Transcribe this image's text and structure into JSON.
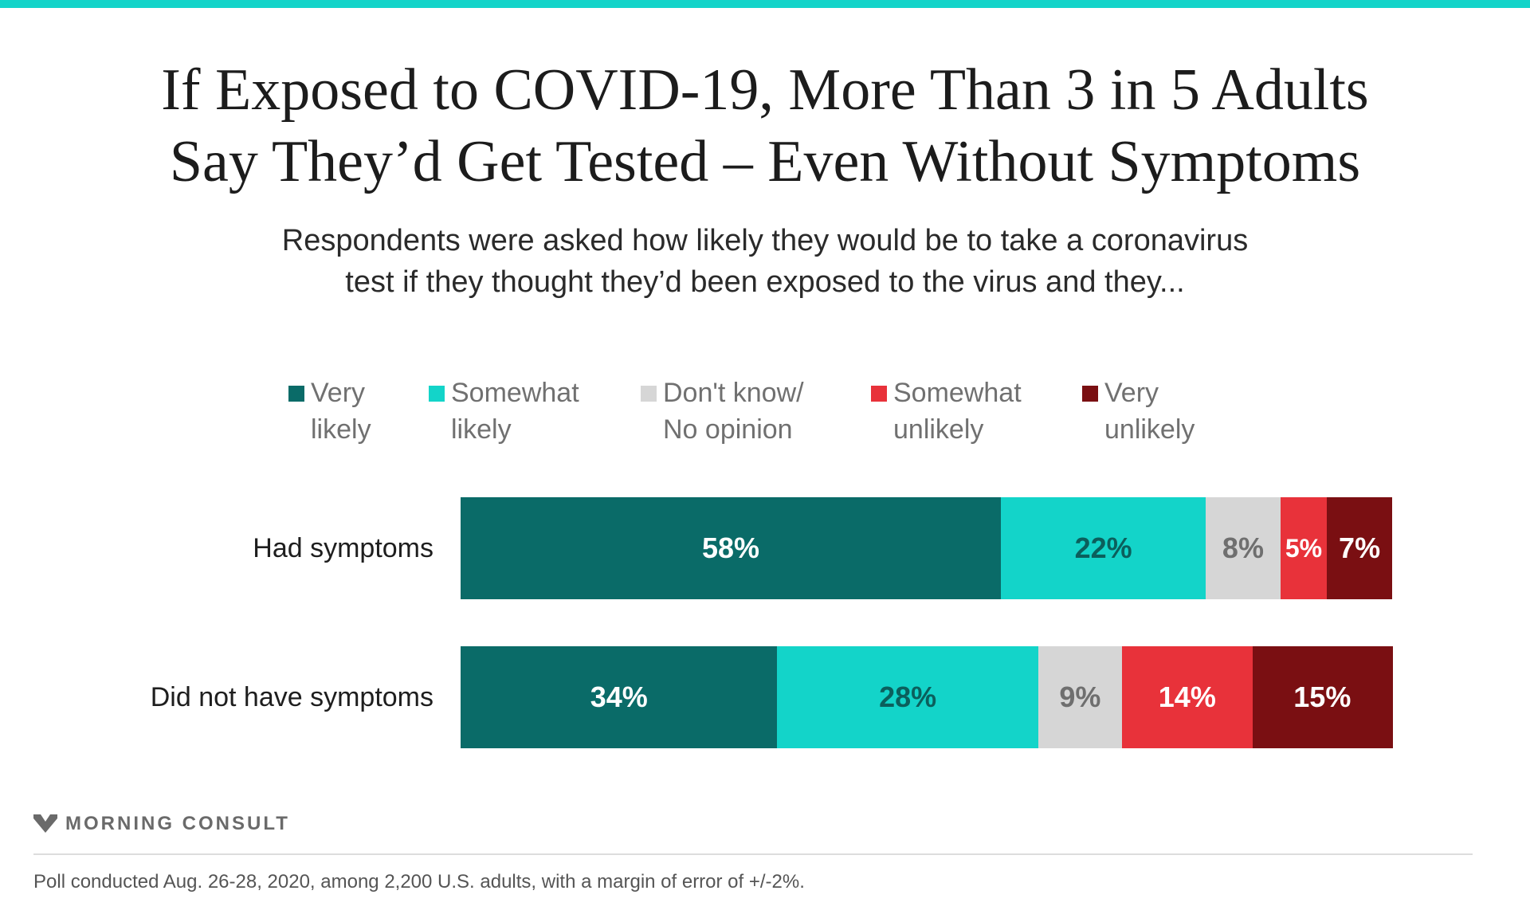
{
  "header": {
    "title_line1": "If Exposed to COVID-19, More Than 3 in 5 Adults",
    "title_line2": "Say They’d Get Tested – Even Without Symptoms",
    "subtitle_line1": "Respondents were asked how likely they would be to take a coronavirus",
    "subtitle_line2": "test if they thought they’d been exposed to the virus and they..."
  },
  "legend": [
    {
      "line1": "Very",
      "line2": "likely",
      "color": "#0a6b68"
    },
    {
      "line1": "Somewhat",
      "line2": "likely",
      "color": "#13d4c9"
    },
    {
      "line1": "Don't know/",
      "line2": "No opinion",
      "color": "#d6d6d6"
    },
    {
      "line1": "Somewhat",
      "line2": "unlikely",
      "color": "#e8323a"
    },
    {
      "line1": "Very",
      "line2": "unlikely",
      "color": "#7a0f12"
    }
  ],
  "chart_data": {
    "type": "bar",
    "orientation": "horizontal",
    "stacked": true,
    "categories": [
      "Had symptoms",
      "Did not have symptoms"
    ],
    "series": [
      {
        "name": "Very likely",
        "values": [
          58,
          34
        ],
        "labels": [
          "58%",
          "34%"
        ],
        "color": "#0a6b68",
        "label_color": "#ffffff"
      },
      {
        "name": "Somewhat likely",
        "values": [
          22,
          28
        ],
        "labels": [
          "22%",
          "28%"
        ],
        "color": "#13d4c9",
        "label_color": "#0b5f5c"
      },
      {
        "name": "Don't know/ No opinion",
        "values": [
          8,
          9
        ],
        "labels": [
          "8%",
          "9%"
        ],
        "color": "#d6d6d6",
        "label_color": "#6f6f6f"
      },
      {
        "name": "Somewhat unlikely",
        "values": [
          5,
          14
        ],
        "labels": [
          "5%",
          "14%"
        ],
        "color": "#e8323a",
        "label_color": "#ffffff"
      },
      {
        "name": "Very unlikely",
        "values": [
          7,
          15
        ],
        "labels": [
          "7%",
          "15%"
        ],
        "color": "#7a0f12",
        "label_color": "#ffffff"
      }
    ],
    "legend_position": "top",
    "grid": false
  },
  "footer": {
    "brand": "MORNING CONSULT",
    "source": "Poll conducted Aug. 26-28, 2020, among 2,200 U.S. adults, with a margin of error of +/-2%."
  }
}
